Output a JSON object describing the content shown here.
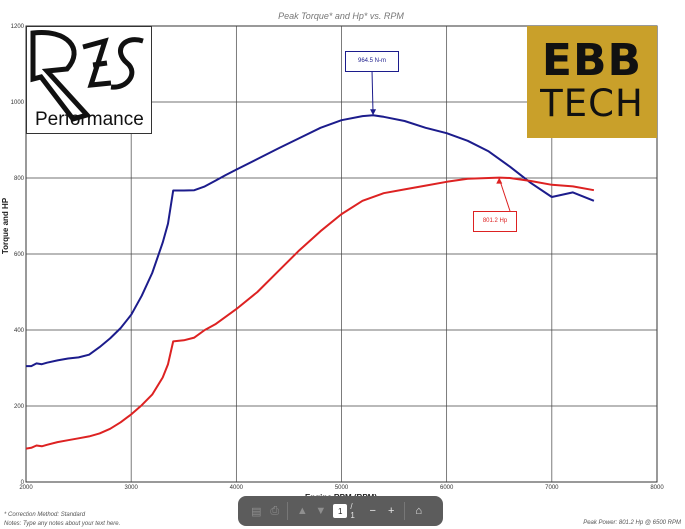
{
  "chart_data": {
    "type": "line",
    "title": "Peak Torque* and Hp* vs. RPM",
    "xlabel": "Engine RPM (RPM)",
    "ylabel": "Torque and HP",
    "xlim": [
      2000,
      8000
    ],
    "ylim": [
      0,
      1200
    ],
    "x_ticks": [
      "2000",
      "3000",
      "4000",
      "5000",
      "6000",
      "7000",
      "8000"
    ],
    "y_ticks": [
      "0",
      "200",
      "400",
      "600",
      "800",
      "1000",
      "1200"
    ],
    "grid": true,
    "series": [
      {
        "name": "Torque",
        "color": "#1c1c8c",
        "x": [
          2000,
          2050,
          2100,
          2150,
          2200,
          2300,
          2400,
          2500,
          2600,
          2700,
          2800,
          2900,
          3000,
          3100,
          3200,
          3300,
          3350,
          3400,
          3500,
          3600,
          3700,
          3800,
          3900,
          4000,
          4200,
          4400,
          4600,
          4800,
          5000,
          5200,
          5300,
          5400,
          5600,
          5800,
          6000,
          6200,
          6400,
          6600,
          6800,
          7000,
          7200,
          7400
        ],
        "y": [
          305,
          305,
          312,
          310,
          314,
          320,
          325,
          328,
          335,
          355,
          378,
          405,
          440,
          490,
          550,
          630,
          680,
          767,
          767,
          768,
          778,
          793,
          808,
          822,
          850,
          878,
          905,
          932,
          952,
          963,
          965,
          961,
          950,
          932,
          918,
          898,
          870,
          830,
          787,
          750,
          762,
          740
        ]
      },
      {
        "name": "Hp",
        "color": "#dd2222",
        "x": [
          2000,
          2050,
          2100,
          2150,
          2200,
          2300,
          2400,
          2500,
          2600,
          2700,
          2800,
          2900,
          3000,
          3100,
          3200,
          3300,
          3350,
          3400,
          3500,
          3600,
          3700,
          3800,
          3900,
          4000,
          4200,
          4400,
          4600,
          4800,
          5000,
          5200,
          5400,
          5600,
          5800,
          6000,
          6200,
          6400,
          6500,
          6600,
          6800,
          7000,
          7200,
          7400
        ],
        "y": [
          88,
          90,
          96,
          94,
          98,
          105,
          110,
          115,
          120,
          128,
          140,
          157,
          178,
          202,
          230,
          275,
          310,
          370,
          373,
          380,
          400,
          415,
          435,
          455,
          500,
          555,
          610,
          660,
          705,
          740,
          760,
          770,
          780,
          790,
          798,
          800,
          801,
          800,
          792,
          782,
          778,
          768
        ]
      }
    ],
    "annotations": [
      {
        "text": "964.5 N-m",
        "x": 5300,
        "y": 965,
        "color": "#1c1c8c"
      },
      {
        "text": "801.2 Hp",
        "x": 6500,
        "y": 801,
        "color": "#dd2222"
      }
    ],
    "footer_left": [
      "* Correction Method: Standard",
      "Notes: Type any notes about your text here."
    ],
    "footer_right": "Peak Power: 801.2 Hp @ 6500 RPM"
  },
  "logos": {
    "res_brand": "RES",
    "res_text": "Performance",
    "ebb_line1": "EBB",
    "ebb_line2": "TECH"
  },
  "toolbar": {
    "page_number": "1",
    "page_total": "/ 1"
  }
}
